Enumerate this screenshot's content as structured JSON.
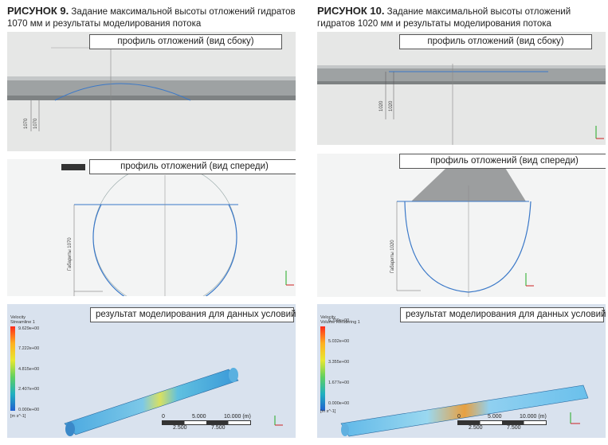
{
  "figures": [
    {
      "title_num": "РИСУНОК 9.",
      "title_text": "Задание максимальной высоты отложений гидратов 1070 мм и результаты моделирования потока",
      "side_label": "профиль отложений (вид сбоку)",
      "front_label": "профиль отложений (вид спереди)",
      "result_label": "результат моделирования для данных условий",
      "side_dims": [
        "1070",
        "1070"
      ],
      "front_dim": "Габариты 1070",
      "legend_title": "Velocity",
      "legend_sub": "Streamline 1",
      "legend_values": [
        "9.629e+00",
        "7.222e+00",
        "4.815e+00",
        "2.407e+00",
        "0.000e+00"
      ],
      "legend_unit": "[m s^-1]",
      "scale_top": [
        "0",
        "5.000",
        "10.000 (m)"
      ],
      "scale_bottom": [
        "2.500",
        "7.500"
      ],
      "accent": "#3a78c8"
    },
    {
      "title_num": "РИСУНОК 10.",
      "title_text": "Задание максимальной высоты отложений гидратов 1020 мм и результаты моделирования потока",
      "side_label": "профиль отложений (вид сбоку)",
      "front_label": "профиль отложений (вид спереди)",
      "result_label": "результат моделирования для данных условий",
      "side_dims": [
        "1020",
        "1020"
      ],
      "front_dim": "Габариты 1020",
      "legend_title": "Velocity",
      "legend_sub": "Volume Rendering 1",
      "legend_values": [
        "6.709e+00",
        "5.032e+00",
        "3.355e+00",
        "1.677e+00",
        "0.000e+00"
      ],
      "legend_unit": "[m s^-1]",
      "scale_top": [
        "0",
        "5.000",
        "10.000 (m)"
      ],
      "scale_bottom": [
        "2.500",
        "7.500"
      ],
      "accent": "#3a78c8"
    }
  ]
}
